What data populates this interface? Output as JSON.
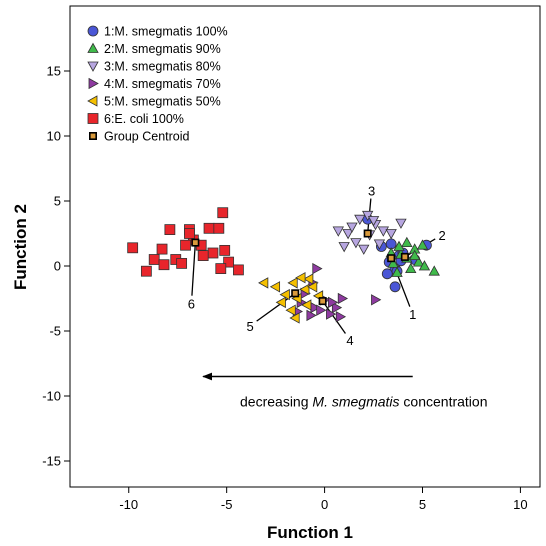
{
  "chart_data": {
    "type": "scatter",
    "title": "",
    "xlabel": "Function 1",
    "ylabel": "Function 2",
    "xlim": [
      -13,
      11
    ],
    "ylim": [
      -17,
      20
    ],
    "xticks": [
      -10,
      -5,
      0,
      5,
      10
    ],
    "yticks": [
      -15,
      -10,
      -5,
      0,
      5,
      10,
      15
    ],
    "grid": false,
    "legend_position": "top-left",
    "series": [
      {
        "name": "1:M. smegmatis  100%",
        "marker": "circle",
        "color": "#4a56d6",
        "points": [
          [
            2.2,
            3.6
          ],
          [
            3.3,
            0.3
          ],
          [
            3.6,
            -0.2
          ],
          [
            3.8,
            0.8
          ],
          [
            4.0,
            1.0
          ],
          [
            3.2,
            -0.6
          ],
          [
            3.6,
            -1.6
          ],
          [
            3.4,
            1.7
          ],
          [
            5.2,
            1.6
          ],
          [
            4.6,
            0.5
          ],
          [
            2.9,
            1.5
          ],
          [
            3.7,
            -0.4
          ],
          [
            3.9,
            0.4
          ]
        ]
      },
      {
        "name": "2:M. smegmatis  90%",
        "marker": "triangle-up",
        "color": "#3fba4a",
        "points": [
          [
            3.5,
            0.2
          ],
          [
            3.9,
            0.9
          ],
          [
            4.2,
            0.6
          ],
          [
            4.6,
            1.3
          ],
          [
            5.0,
            1.6
          ],
          [
            4.4,
            -0.2
          ],
          [
            3.7,
            -0.5
          ],
          [
            4.8,
            0.3
          ],
          [
            5.6,
            -0.4
          ],
          [
            4.2,
            1.8
          ],
          [
            3.4,
            1.0
          ],
          [
            4.6,
            0.8
          ],
          [
            5.1,
            0.0
          ],
          [
            3.8,
            1.5
          ]
        ]
      },
      {
        "name": "3:M. smegmatis  80%",
        "marker": "triangle-down",
        "color": "#b7a6e0",
        "points": [
          [
            1.2,
            2.5
          ],
          [
            1.8,
            3.6
          ],
          [
            2.2,
            3.9
          ],
          [
            2.6,
            3.2
          ],
          [
            3.0,
            2.7
          ],
          [
            1.6,
            1.8
          ],
          [
            2.0,
            1.3
          ],
          [
            2.8,
            1.7
          ],
          [
            3.4,
            2.5
          ],
          [
            0.7,
            2.7
          ],
          [
            1.4,
            3.0
          ],
          [
            2.5,
            3.5
          ],
          [
            3.9,
            3.3
          ],
          [
            1.0,
            1.5
          ],
          [
            2.3,
            2.4
          ]
        ]
      },
      {
        "name": "4:M. smegmatis  70%",
        "marker": "triangle-right",
        "color": "#8e3aa0",
        "points": [
          [
            -1.2,
            -2.8
          ],
          [
            -0.5,
            -3.2
          ],
          [
            0.0,
            -2.6
          ],
          [
            0.6,
            -3.2
          ],
          [
            0.9,
            -2.5
          ],
          [
            -0.7,
            -3.8
          ],
          [
            -0.2,
            -3.4
          ],
          [
            0.3,
            -3.7
          ],
          [
            -1.0,
            -2.1
          ],
          [
            -0.6,
            -1.3
          ],
          [
            -0.4,
            -0.2
          ],
          [
            2.6,
            -2.6
          ],
          [
            0.8,
            -3.9
          ],
          [
            0.4,
            -2.8
          ],
          [
            -1.4,
            -3.5
          ]
        ]
      },
      {
        "name": "5:M. smegmatis  50%",
        "marker": "triangle-left",
        "color": "#f5c000",
        "points": [
          [
            -3.1,
            -1.3
          ],
          [
            -2.5,
            -1.6
          ],
          [
            -2.0,
            -2.2
          ],
          [
            -1.4,
            -2.5
          ],
          [
            -1.0,
            -1.8
          ],
          [
            -0.6,
            -1.6
          ],
          [
            -1.7,
            -3.4
          ],
          [
            -1.5,
            -4.0
          ],
          [
            -0.9,
            -3.0
          ],
          [
            -0.3,
            -2.3
          ],
          [
            -2.2,
            -2.8
          ],
          [
            -0.8,
            -1.0
          ],
          [
            -1.6,
            -1.3
          ],
          [
            -1.2,
            -0.9
          ]
        ]
      },
      {
        "name": "6:E. coli 100%",
        "marker": "square",
        "color": "#e8252b",
        "points": [
          [
            -9.8,
            1.4
          ],
          [
            -9.1,
            -0.4
          ],
          [
            -8.7,
            0.5
          ],
          [
            -8.3,
            1.3
          ],
          [
            -8.2,
            0.1
          ],
          [
            -7.9,
            2.8
          ],
          [
            -7.6,
            0.5
          ],
          [
            -6.9,
            2.8
          ],
          [
            -6.7,
            2.0
          ],
          [
            -6.3,
            1.6
          ],
          [
            -5.9,
            2.9
          ],
          [
            -5.7,
            1.0
          ],
          [
            -5.4,
            2.9
          ],
          [
            -5.2,
            4.1
          ],
          [
            -5.1,
            1.2
          ],
          [
            -4.9,
            0.3
          ],
          [
            -5.3,
            -0.2
          ],
          [
            -4.4,
            -0.3
          ],
          [
            -6.9,
            2.5
          ],
          [
            -7.1,
            1.6
          ],
          [
            -6.2,
            0.8
          ],
          [
            -7.3,
            0.2
          ]
        ]
      }
    ],
    "centroid_series": {
      "name": "Group Centroid",
      "marker": "square",
      "color": "#d99a3c",
      "points": [
        [
          3.4,
          0.6
        ],
        [
          4.1,
          0.7
        ],
        [
          2.2,
          2.5
        ],
        [
          -0.1,
          -2.7
        ],
        [
          -1.5,
          -2.1
        ],
        [
          -6.6,
          1.8
        ]
      ]
    },
    "callouts": [
      {
        "label": "1",
        "from": [
          3.4,
          0.6
        ],
        "to": [
          4.5,
          -3.7
        ]
      },
      {
        "label": "2",
        "from": [
          4.1,
          0.7
        ],
        "to": [
          6.0,
          2.4
        ]
      },
      {
        "label": "3",
        "from": [
          2.2,
          2.5
        ],
        "to": [
          2.4,
          5.8
        ]
      },
      {
        "label": "4",
        "from": [
          -0.1,
          -2.7
        ],
        "to": [
          1.3,
          -5.7
        ]
      },
      {
        "label": "5",
        "from": [
          -1.5,
          -2.1
        ],
        "to": [
          -3.8,
          -4.6
        ]
      },
      {
        "label": "6",
        "from": [
          -6.6,
          1.8
        ],
        "to": [
          -6.8,
          -2.9
        ]
      }
    ],
    "annotation": {
      "text_before": "decreasing ",
      "text_italic": "M. smegmatis",
      "text_after": " concentration",
      "arrow_from": [
        4.5,
        -8.5
      ],
      "arrow_to": [
        -6.2,
        -8.5
      ],
      "text_at": [
        2.0,
        -10.8
      ]
    }
  }
}
